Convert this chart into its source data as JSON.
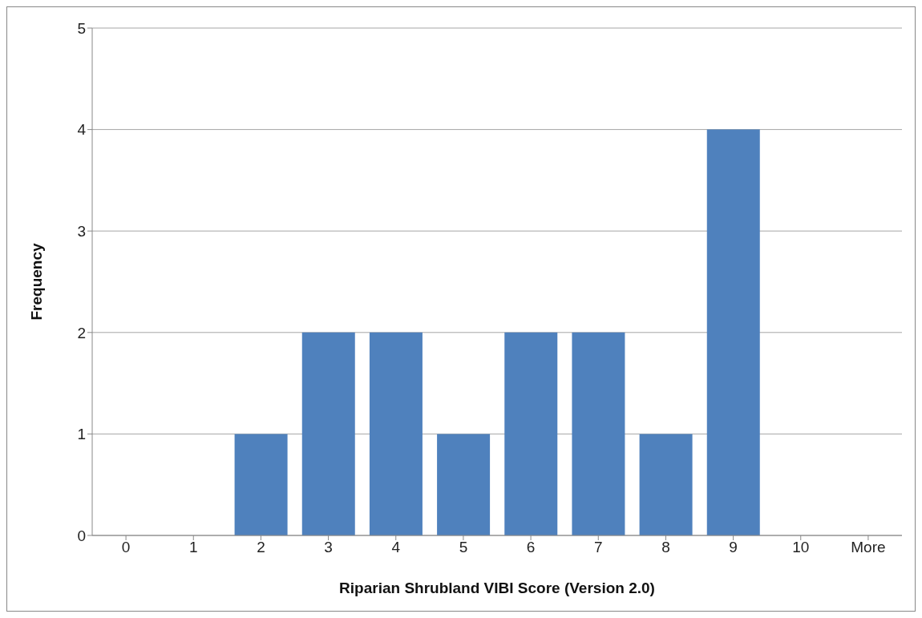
{
  "chart_data": {
    "type": "bar",
    "xlabel": "Riparian Shrubland VIBI Score (Version 2.0)",
    "ylabel": "Frequency",
    "categories": [
      "0",
      "1",
      "2",
      "3",
      "4",
      "5",
      "6",
      "7",
      "8",
      "9",
      "10",
      "More"
    ],
    "values": [
      0,
      0,
      1,
      2,
      2,
      1,
      2,
      2,
      1,
      4,
      0,
      0
    ],
    "color": "#4f81bd",
    "ylim": [
      0,
      5
    ],
    "yticks": [
      0,
      1,
      2,
      3,
      4,
      5
    ],
    "grid": "y"
  }
}
